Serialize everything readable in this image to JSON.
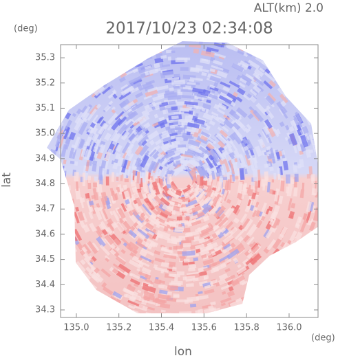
{
  "chart_data": {
    "type": "radar_map",
    "title": "2017/10/23 02:34:08",
    "annotation": "ALT(km) 2.0",
    "x_label": "lon",
    "y_label": "lat",
    "x_unit": "(deg)",
    "y_unit": "(deg)",
    "xlim": [
      134.926,
      136.136
    ],
    "ylim": [
      34.27,
      35.352
    ],
    "xticks": [
      {
        "value": 135.0,
        "label": "135.0"
      },
      135.2,
      135.4,
      135.6,
      135.8,
      {
        "value": 136.0,
        "label": "136.0"
      }
    ],
    "yticks": [
      34.3,
      34.4,
      34.5,
      34.6,
      34.7,
      34.8,
      34.9,
      {
        "value": 35.0,
        "label": "35.0"
      },
      35.1,
      35.2,
      35.3
    ]
  }
}
